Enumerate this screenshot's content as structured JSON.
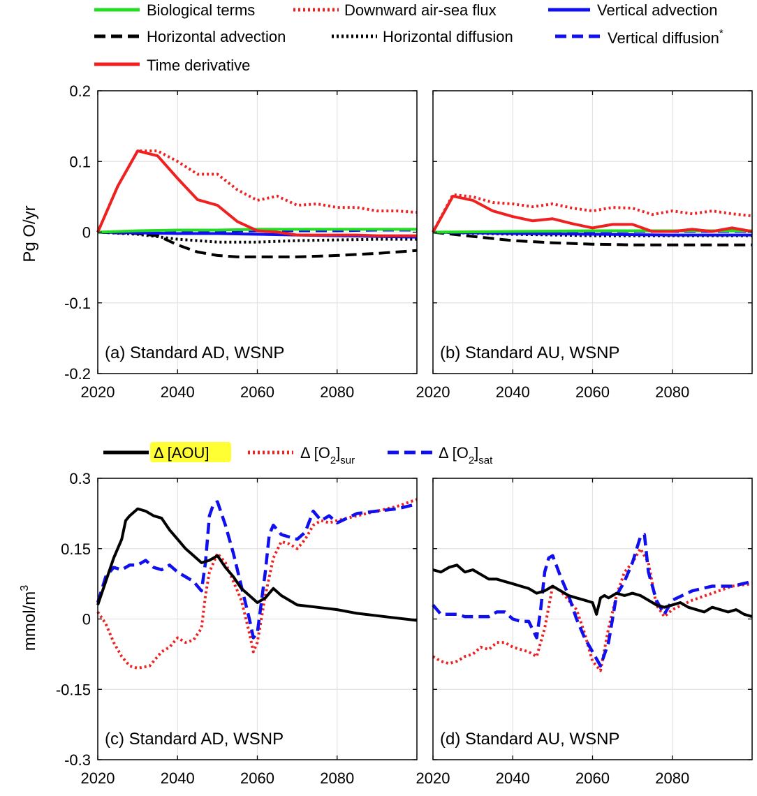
{
  "legend_top": [
    {
      "label": "Biological terms",
      "color": "#22dd22",
      "style": "solid"
    },
    {
      "label": "Downward air-sea flux",
      "color": "#ee2020",
      "style": "dotted"
    },
    {
      "label": "Vertical advection",
      "color": "#1010ee",
      "style": "solid"
    },
    {
      "label": "Horizontal advection",
      "color": "#000000",
      "style": "dashed"
    },
    {
      "label": "Horizontal diffusion",
      "color": "#000000",
      "style": "dotted"
    },
    {
      "label": "Vertical diffusion",
      "label_suffix": "*",
      "color": "#1010ee",
      "style": "dashed"
    },
    {
      "label": "Time derivative",
      "color": "#ee2020",
      "style": "solid"
    }
  ],
  "legend_bottom": [
    {
      "label": "Δ [AOU]",
      "color": "#000000",
      "style": "solid",
      "highlight": "#ffff33"
    },
    {
      "label": "Δ [O",
      "sub": "2",
      "post": "]",
      "subscript": "sur",
      "color": "#ee2020",
      "style": "dotted"
    },
    {
      "label": "Δ [O",
      "sub": "2",
      "post": "]",
      "subscript": "sat",
      "color": "#1010ee",
      "style": "dashed"
    }
  ],
  "chart_data": [
    {
      "type": "line",
      "panel": "(a) Standard AD, WSNP",
      "ylabel": "Pg O/yr",
      "xlim": [
        2020,
        2100
      ],
      "ylim": [
        -0.2,
        0.2
      ],
      "yticks": [
        "-0.2",
        "-0.1",
        "0",
        "0.1",
        "0.2"
      ],
      "xticks": [
        "2020",
        "2040",
        "2060",
        "2080"
      ],
      "xtick_values": [
        2020,
        2040,
        2060,
        2080
      ],
      "ytick_values": [
        -0.2,
        -0.1,
        0,
        0.1,
        0.2
      ],
      "series": [
        {
          "name": "Downward air-sea flux",
          "x": [
            2020,
            2025,
            2030,
            2035,
            2040,
            2045,
            2050,
            2055,
            2060,
            2065,
            2070,
            2075,
            2080,
            2085,
            2090,
            2095,
            2100
          ],
          "values": [
            0,
            0.065,
            0.115,
            0.115,
            0.1,
            0.082,
            0.082,
            0.06,
            0.045,
            0.051,
            0.038,
            0.04,
            0.035,
            0.035,
            0.03,
            0.03,
            0.028
          ]
        },
        {
          "name": "Time derivative",
          "x": [
            2020,
            2025,
            2030,
            2035,
            2040,
            2045,
            2050,
            2055,
            2060,
            2065,
            2070,
            2075,
            2080,
            2085,
            2090,
            2095,
            2100
          ],
          "values": [
            0,
            0.065,
            0.115,
            0.108,
            0.076,
            0.046,
            0.038,
            0.015,
            0.002,
            0.0,
            -0.004,
            -0.004,
            -0.004,
            -0.004,
            -0.005,
            -0.005,
            -0.005
          ]
        },
        {
          "name": "Biological terms",
          "x": [
            2020,
            2030,
            2040,
            2050,
            2060,
            2070,
            2080,
            2090,
            2100
          ],
          "values": [
            0,
            0.002,
            0.003,
            0.003,
            0.004,
            0.004,
            0.004,
            0.004,
            0.004
          ]
        },
        {
          "name": "Vertical advection",
          "x": [
            2020,
            2030,
            2040,
            2050,
            2060,
            2070,
            2080,
            2090,
            2100
          ],
          "values": [
            0,
            -0.001,
            -0.002,
            -0.002,
            -0.003,
            -0.004,
            -0.005,
            -0.006,
            -0.007
          ]
        },
        {
          "name": "Vertical diffusion",
          "x": [
            2020,
            2030,
            2040,
            2050,
            2060,
            2070,
            2080,
            2090,
            2100
          ],
          "values": [
            0,
            0.0,
            0.001,
            0.001,
            0.002,
            0.002,
            0.002,
            0.003,
            0.003
          ]
        },
        {
          "name": "Horizontal diffusion",
          "x": [
            2020,
            2030,
            2040,
            2050,
            2060,
            2070,
            2080,
            2090,
            2100
          ],
          "values": [
            0,
            -0.003,
            -0.01,
            -0.014,
            -0.014,
            -0.012,
            -0.011,
            -0.01,
            -0.01
          ]
        },
        {
          "name": "Horizontal advection",
          "x": [
            2020,
            2030,
            2035,
            2040,
            2045,
            2050,
            2055,
            2060,
            2070,
            2080,
            2090,
            2100
          ],
          "values": [
            0,
            -0.002,
            -0.005,
            -0.018,
            -0.028,
            -0.033,
            -0.035,
            -0.035,
            -0.035,
            -0.033,
            -0.03,
            -0.026
          ]
        }
      ]
    },
    {
      "type": "line",
      "panel": "(b) Standard AU, WSNP",
      "xlim": [
        2020,
        2100
      ],
      "ylim": [
        -0.2,
        0.2
      ],
      "xticks": [
        "2020",
        "2040",
        "2060",
        "2080"
      ],
      "xtick_values": [
        2020,
        2040,
        2060,
        2080
      ],
      "ytick_values": [
        -0.2,
        -0.1,
        0,
        0.1,
        0.2
      ],
      "series": [
        {
          "name": "Downward air-sea flux",
          "x": [
            2020,
            2025,
            2030,
            2035,
            2040,
            2045,
            2050,
            2055,
            2060,
            2065,
            2070,
            2075,
            2080,
            2085,
            2090,
            2095,
            2100
          ],
          "values": [
            0,
            0.053,
            0.05,
            0.042,
            0.04,
            0.036,
            0.04,
            0.034,
            0.03,
            0.035,
            0.034,
            0.025,
            0.03,
            0.026,
            0.03,
            0.026,
            0.023
          ]
        },
        {
          "name": "Time derivative",
          "x": [
            2020,
            2025,
            2030,
            2035,
            2040,
            2045,
            2050,
            2055,
            2060,
            2065,
            2070,
            2075,
            2080,
            2085,
            2090,
            2095,
            2100
          ],
          "values": [
            0,
            0.051,
            0.045,
            0.03,
            0.022,
            0.016,
            0.019,
            0.012,
            0.006,
            0.011,
            0.011,
            0.001,
            0.001,
            0.004,
            0.001,
            0.006,
            0.001
          ]
        },
        {
          "name": "Biological terms",
          "x": [
            2020,
            2040,
            2060,
            2080,
            2100
          ],
          "values": [
            0,
            0.001,
            0.002,
            0.002,
            0.002
          ]
        },
        {
          "name": "Vertical advection",
          "x": [
            2020,
            2040,
            2060,
            2080,
            2100
          ],
          "values": [
            0,
            -0.002,
            -0.003,
            -0.004,
            -0.004
          ]
        },
        {
          "name": "Vertical diffusion",
          "x": [
            2020,
            2040,
            2060,
            2080,
            2100
          ],
          "values": [
            0,
            0.0,
            0.001,
            0.001,
            0.001
          ]
        },
        {
          "name": "Horizontal diffusion",
          "x": [
            2020,
            2040,
            2060,
            2080,
            2100
          ],
          "values": [
            0,
            -0.003,
            -0.005,
            -0.005,
            -0.005
          ]
        },
        {
          "name": "Horizontal advection",
          "x": [
            2020,
            2030,
            2040,
            2050,
            2060,
            2070,
            2080,
            2090,
            2100
          ],
          "values": [
            0,
            -0.006,
            -0.012,
            -0.015,
            -0.017,
            -0.018,
            -0.018,
            -0.018,
            -0.018
          ]
        }
      ]
    },
    {
      "type": "line",
      "panel": "(c) Standard AD, WSNP",
      "ylabel": "mmol/m",
      "ylabel_sup": "3",
      "xlim": [
        2020,
        2100
      ],
      "ylim": [
        -0.3,
        0.3
      ],
      "yticks": [
        "-0.3",
        "-0.15",
        "0",
        "0.15",
        "0.3"
      ],
      "xticks": [
        "2020",
        "2040",
        "2060",
        "2080"
      ],
      "xtick_values": [
        2020,
        2040,
        2060,
        2080
      ],
      "ytick_values": [
        -0.3,
        -0.15,
        0,
        0.15,
        0.3
      ],
      "series": [
        {
          "name": "Δ [AOU]",
          "x": [
            2020,
            2022,
            2024,
            2026,
            2027,
            2028,
            2030,
            2032,
            2034,
            2036,
            2038,
            2040,
            2042,
            2044,
            2046,
            2048,
            2050,
            2052,
            2054,
            2056,
            2058,
            2060,
            2062,
            2064,
            2066,
            2068,
            2070,
            2075,
            2080,
            2085,
            2090,
            2095,
            2100
          ],
          "values": [
            0.03,
            0.08,
            0.13,
            0.17,
            0.21,
            0.22,
            0.235,
            0.23,
            0.22,
            0.215,
            0.19,
            0.17,
            0.15,
            0.135,
            0.12,
            0.125,
            0.135,
            0.11,
            0.09,
            0.065,
            0.05,
            0.035,
            0.045,
            0.065,
            0.05,
            0.04,
            0.03,
            0.025,
            0.02,
            0.012,
            0.007,
            0.002,
            -0.003
          ]
        },
        {
          "name": "Δ [O2]sur",
          "x": [
            2020,
            2022,
            2024,
            2026,
            2028,
            2030,
            2033,
            2036,
            2038,
            2040,
            2042,
            2044,
            2046,
            2047,
            2048,
            2050,
            2052,
            2054,
            2056,
            2058,
            2059,
            2060,
            2062,
            2064,
            2066,
            2068,
            2070,
            2072,
            2074,
            2076,
            2078,
            2080,
            2085,
            2090,
            2095,
            2100
          ],
          "values": [
            0.015,
            -0.01,
            -0.05,
            -0.08,
            -0.1,
            -0.105,
            -0.1,
            -0.07,
            -0.06,
            -0.04,
            -0.05,
            -0.045,
            -0.02,
            0.05,
            0.1,
            0.14,
            0.12,
            0.08,
            0.04,
            -0.03,
            -0.07,
            -0.05,
            0.05,
            0.13,
            0.165,
            0.16,
            0.15,
            0.17,
            0.2,
            0.21,
            0.205,
            0.21,
            0.22,
            0.23,
            0.24,
            0.255
          ]
        },
        {
          "name": "Δ [O2]sat",
          "x": [
            2020,
            2022,
            2024,
            2026,
            2028,
            2030,
            2032,
            2034,
            2036,
            2038,
            2040,
            2042,
            2044,
            2046,
            2047,
            2048,
            2049,
            2050,
            2051,
            2052,
            2054,
            2056,
            2058,
            2059,
            2060,
            2062,
            2063,
            2064,
            2066,
            2068,
            2070,
            2072,
            2074,
            2076,
            2078,
            2080,
            2085,
            2090,
            2095,
            2100
          ],
          "values": [
            0.035,
            0.09,
            0.11,
            0.105,
            0.115,
            0.115,
            0.125,
            0.11,
            0.105,
            0.115,
            0.1,
            0.09,
            0.08,
            0.06,
            0.12,
            0.22,
            0.245,
            0.25,
            0.225,
            0.2,
            0.14,
            0.07,
            0.0,
            -0.04,
            -0.03,
            0.1,
            0.18,
            0.2,
            0.18,
            0.175,
            0.17,
            0.185,
            0.23,
            0.21,
            0.22,
            0.205,
            0.225,
            0.23,
            0.235,
            0.245
          ]
        }
      ]
    },
    {
      "type": "line",
      "panel": "(d) Standard AU, WSNP",
      "xlim": [
        2020,
        2100
      ],
      "ylim": [
        -0.3,
        0.3
      ],
      "xticks": [
        "2020",
        "2040",
        "2060",
        "2080"
      ],
      "xtick_values": [
        2020,
        2040,
        2060,
        2080
      ],
      "ytick_values": [
        -0.3,
        -0.15,
        0,
        0.15,
        0.3
      ],
      "series": [
        {
          "name": "Δ [AOU]",
          "x": [
            2020,
            2022,
            2024,
            2026,
            2028,
            2030,
            2032,
            2034,
            2036,
            2038,
            2040,
            2042,
            2044,
            2046,
            2048,
            2050,
            2052,
            2054,
            2056,
            2058,
            2060,
            2061,
            2062,
            2063,
            2064,
            2066,
            2068,
            2070,
            2072,
            2074,
            2076,
            2078,
            2080,
            2082,
            2084,
            2086,
            2088,
            2090,
            2092,
            2094,
            2096,
            2098,
            2100
          ],
          "values": [
            0.105,
            0.1,
            0.11,
            0.115,
            0.1,
            0.105,
            0.095,
            0.085,
            0.085,
            0.08,
            0.075,
            0.07,
            0.065,
            0.055,
            0.06,
            0.07,
            0.06,
            0.05,
            0.045,
            0.04,
            0.035,
            0.01,
            0.045,
            0.05,
            0.045,
            0.055,
            0.05,
            0.055,
            0.05,
            0.04,
            0.03,
            0.025,
            0.03,
            0.035,
            0.025,
            0.02,
            0.015,
            0.025,
            0.02,
            0.015,
            0.02,
            0.01,
            0.005
          ]
        },
        {
          "name": "Δ [O2]sur",
          "x": [
            2020,
            2022,
            2024,
            2026,
            2028,
            2030,
            2032,
            2034,
            2036,
            2038,
            2040,
            2042,
            2044,
            2046,
            2048,
            2050,
            2052,
            2054,
            2056,
            2058,
            2060,
            2062,
            2064,
            2066,
            2068,
            2070,
            2072,
            2074,
            2076,
            2078,
            2080,
            2085,
            2090,
            2095,
            2100
          ],
          "values": [
            -0.08,
            -0.09,
            -0.095,
            -0.09,
            -0.08,
            -0.075,
            -0.06,
            -0.065,
            -0.05,
            -0.05,
            -0.06,
            -0.065,
            -0.07,
            -0.08,
            -0.02,
            0.07,
            0.06,
            0.04,
            0.02,
            -0.03,
            -0.09,
            -0.11,
            -0.02,
            0.05,
            0.1,
            0.12,
            0.15,
            0.12,
            0.03,
            0.005,
            0.02,
            0.04,
            0.055,
            0.07,
            0.075
          ]
        },
        {
          "name": "Δ [O2]sat",
          "x": [
            2020,
            2022,
            2024,
            2026,
            2028,
            2030,
            2032,
            2034,
            2036,
            2038,
            2040,
            2042,
            2044,
            2046,
            2047,
            2048,
            2049,
            2050,
            2052,
            2054,
            2056,
            2058,
            2060,
            2062,
            2064,
            2066,
            2068,
            2070,
            2072,
            2073,
            2074,
            2076,
            2078,
            2080,
            2085,
            2090,
            2095,
            2100
          ],
          "values": [
            0.03,
            0.01,
            0.01,
            0.01,
            0.005,
            0.005,
            0.005,
            0.005,
            0.015,
            0.015,
            0.0,
            -0.005,
            -0.005,
            -0.04,
            0.02,
            0.1,
            0.13,
            0.135,
            0.09,
            0.05,
            0.0,
            -0.04,
            -0.07,
            -0.1,
            -0.05,
            0.05,
            0.08,
            0.12,
            0.175,
            0.18,
            0.1,
            0.04,
            0.01,
            0.04,
            0.06,
            0.07,
            0.07,
            0.08
          ]
        }
      ]
    }
  ]
}
